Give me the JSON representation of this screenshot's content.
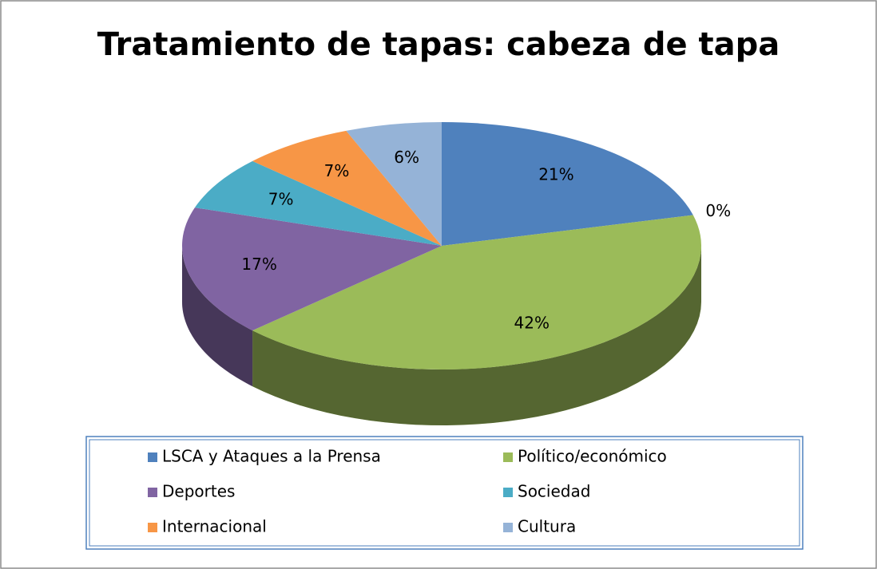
{
  "chart_data": {
    "type": "pie3d",
    "title": "Tratamiento de tapas: cabeza de tapa",
    "categories": [
      "LSCA y Ataques a la Prensa",
      null,
      "Político/económico",
      "Deportes",
      "Sociedad",
      "Internacional",
      "Cultura"
    ],
    "values": [
      21,
      0,
      42,
      17,
      7,
      7,
      6
    ],
    "value_labels": [
      "21%",
      "0%",
      "42%",
      "17%",
      "7%",
      "7%",
      "6%"
    ],
    "colors": [
      "#4F81BD",
      "#C0504D",
      "#9BBB59",
      "#8064A2",
      "#4BACC6",
      "#F79646",
      "#95B3D7"
    ],
    "legend": "bottom"
  }
}
